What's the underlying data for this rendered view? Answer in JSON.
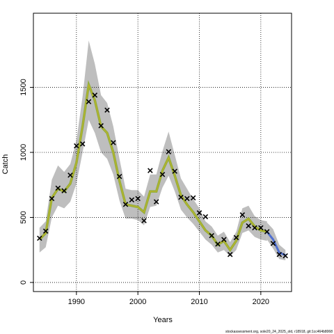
{
  "chart_data": {
    "type": "line",
    "xlabel": "Years",
    "ylabel": "Catch",
    "xlim": [
      1983,
      2025
    ],
    "ylim": [
      -70,
      2070
    ],
    "x_ticks": [
      1990,
      2000,
      2010,
      2020
    ],
    "y_ticks": [
      0,
      500,
      1000,
      1500
    ],
    "grid": true,
    "footer": "stockassessment.org, sole20_24_2025_old, r18918, git:1cc464b8068",
    "colors": {
      "band": "#bebebe",
      "fit": "#8fae3a",
      "fit_center": "#c8b428",
      "forecast": "#4f6fd0",
      "observed": "#000000"
    },
    "fit": {
      "x": [
        1984,
        1985,
        1986,
        1987,
        1988,
        1989,
        1990,
        1991,
        1992,
        1993,
        1994,
        1995,
        1996,
        1997,
        1998,
        1999,
        2000,
        2001,
        2002,
        2003,
        2004,
        2005,
        2006,
        2007,
        2008,
        2009,
        2010,
        2011,
        2012,
        2013,
        2014,
        2015,
        2016,
        2017,
        2018,
        2019,
        2020,
        2021
      ],
      "y": [
        330,
        380,
        650,
        720,
        700,
        760,
        920,
        1200,
        1520,
        1400,
        1200,
        1150,
        1000,
        780,
        600,
        590,
        580,
        540,
        700,
        700,
        860,
        960,
        820,
        670,
        600,
        540,
        470,
        400,
        360,
        290,
        320,
        250,
        320,
        460,
        490,
        430,
        400,
        390
      ],
      "lower": [
        230,
        270,
        500,
        590,
        570,
        620,
        760,
        1000,
        1250,
        1150,
        1000,
        950,
        830,
        630,
        490,
        490,
        480,
        440,
        580,
        590,
        730,
        820,
        700,
        560,
        500,
        450,
        390,
        330,
        290,
        230,
        250,
        200,
        250,
        380,
        400,
        350,
        330,
        320
      ],
      "upper": [
        420,
        470,
        790,
        900,
        850,
        910,
        1090,
        1430,
        1860,
        1680,
        1440,
        1380,
        1200,
        950,
        720,
        710,
        710,
        660,
        830,
        830,
        1010,
        1160,
        980,
        800,
        720,
        640,
        570,
        470,
        430,
        360,
        390,
        310,
        390,
        570,
        590,
        510,
        480,
        470
      ]
    },
    "forecast": {
      "x": [
        2021,
        2022,
        2023,
        2024
      ],
      "y": [
        390,
        330,
        230,
        210
      ],
      "lower": [
        330,
        260,
        180,
        170
      ],
      "upper": [
        460,
        410,
        290,
        250
      ]
    },
    "observed": {
      "x": [
        1984,
        1985,
        1986,
        1987,
        1988,
        1989,
        1990,
        1991,
        1992,
        1993,
        1994,
        1995,
        1996,
        1997,
        1998,
        1999,
        2000,
        2001,
        2002,
        2003,
        2004,
        2005,
        2006,
        2007,
        2008,
        2009,
        2010,
        2011,
        2012,
        2013,
        2014,
        2015,
        2016,
        2017,
        2018,
        2019,
        2020,
        2021,
        2022,
        2023,
        2024
      ],
      "y": [
        340,
        395,
        645,
        725,
        705,
        825,
        1050,
        1065,
        1390,
        1440,
        1205,
        1325,
        1075,
        815,
        600,
        635,
        645,
        475,
        860,
        620,
        830,
        1005,
        855,
        655,
        645,
        650,
        535,
        505,
        360,
        295,
        330,
        215,
        345,
        520,
        435,
        420,
        420,
        390,
        300,
        215,
        205
      ]
    }
  }
}
